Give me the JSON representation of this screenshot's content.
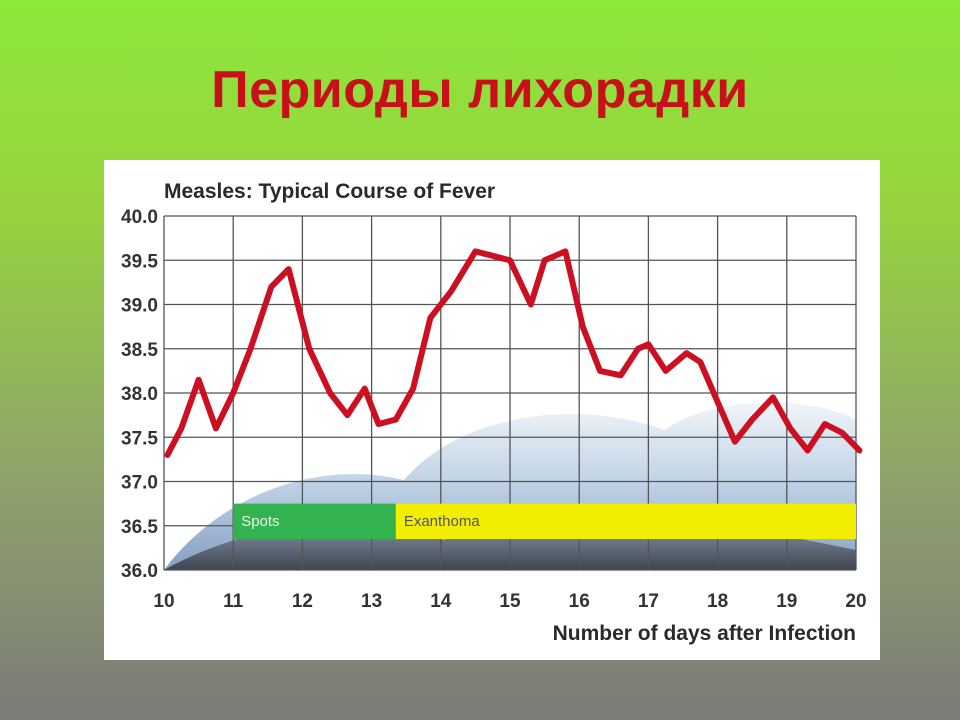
{
  "slide": {
    "title": "Периоды лихорадки"
  },
  "colors": {
    "title": "#c8101a",
    "line": "#cc1022",
    "grid": "#555555",
    "spots_band": "#33b34f",
    "exanthoma_band": "#f2ee00"
  },
  "chart_data": {
    "type": "line",
    "title": "Measles: Typical Course of Fever",
    "xlabel": "Number of days after Infection",
    "ylabel": "",
    "xlim": [
      10,
      20
    ],
    "ylim": [
      36.0,
      40.0
    ],
    "x_ticks": [
      "10",
      "11",
      "12",
      "13",
      "14",
      "15",
      "16",
      "17",
      "18",
      "19",
      "20"
    ],
    "y_ticks": [
      "40.0",
      "39.5",
      "39.0",
      "38.5",
      "38.0",
      "37.5",
      "37.0",
      "36.5",
      "36.0"
    ],
    "grid": true,
    "series": [
      {
        "x": [
          10.05,
          10.25,
          10.5,
          10.75,
          11.0,
          11.25,
          11.55,
          11.8,
          12.1,
          12.4,
          12.65,
          12.9,
          13.1,
          13.35,
          13.6,
          13.85,
          14.15,
          14.5,
          14.75,
          15.0,
          15.3,
          15.5,
          15.8,
          16.05,
          16.3,
          16.6,
          16.85,
          17.0,
          17.25,
          17.55,
          17.75,
          18.0,
          18.25,
          18.5,
          18.8,
          19.05,
          19.3,
          19.55,
          19.8,
          20.05
        ],
        "y": [
          37.3,
          37.6,
          38.15,
          37.6,
          38.0,
          38.5,
          39.2,
          39.4,
          38.5,
          38.0,
          37.75,
          38.05,
          37.65,
          37.7,
          38.05,
          38.85,
          39.15,
          39.6,
          39.55,
          39.5,
          39.0,
          39.5,
          39.6,
          38.75,
          38.25,
          38.2,
          38.5,
          38.55,
          38.25,
          38.45,
          38.35,
          37.9,
          37.45,
          37.7,
          37.95,
          37.6,
          37.35,
          37.65,
          37.55,
          37.35
        ]
      }
    ],
    "bands": [
      {
        "label": "Spots",
        "x_start": 11.0,
        "x_end": 13.35
      },
      {
        "label": "Exanthoma",
        "x_start": 13.35,
        "x_end": 20.0
      }
    ]
  }
}
